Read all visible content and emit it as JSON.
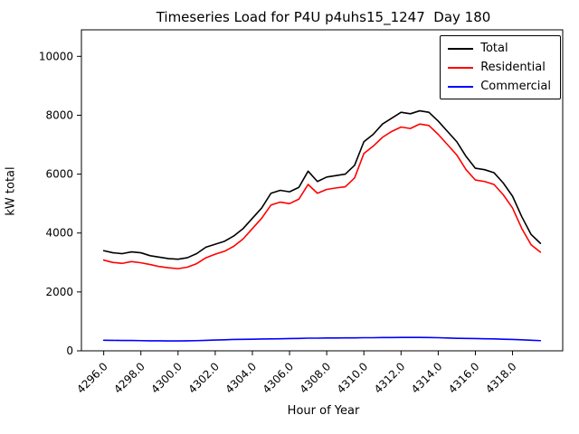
{
  "figure": {
    "title": "Timeseries Load for P4U p4uhs15_1247  Day 180",
    "xlabel": "Hour of Year",
    "ylabel": "kW total"
  },
  "legend": {
    "entries": [
      {
        "label": "Total",
        "color": "#000000"
      },
      {
        "label": "Residential",
        "color": "#ff0000"
      },
      {
        "label": "Commercial",
        "color": "#0000ff"
      }
    ]
  },
  "chart_data": {
    "type": "line",
    "title": "Timeseries Load for P4U p4uhs15_1247  Day 180",
    "xlabel": "Hour of Year",
    "ylabel": "kW total",
    "xlim": [
      4294.8,
      4320.7
    ],
    "ylim": [
      0,
      10900
    ],
    "grid": false,
    "legend_position": "upper right",
    "x_ticks": [
      4296,
      4298,
      4300,
      4302,
      4304,
      4306,
      4308,
      4310,
      4312,
      4314,
      4316,
      4318
    ],
    "x_tick_labels": [
      "4296.0",
      "4298.0",
      "4300.0",
      "4302.0",
      "4304.0",
      "4306.0",
      "4308.0",
      "4310.0",
      "4312.0",
      "4314.0",
      "4316.0",
      "4318.0"
    ],
    "y_ticks": [
      0,
      2000,
      4000,
      6000,
      8000,
      10000
    ],
    "y_tick_labels": [
      "0",
      "2000",
      "4000",
      "6000",
      "8000",
      "10000"
    ],
    "x": [
      4296.0,
      4296.5,
      4297.0,
      4297.5,
      4298.0,
      4298.5,
      4299.0,
      4299.5,
      4300.0,
      4300.5,
      4301.0,
      4301.5,
      4302.0,
      4302.5,
      4303.0,
      4303.5,
      4304.0,
      4304.5,
      4305.0,
      4305.5,
      4306.0,
      4306.5,
      4307.0,
      4307.5,
      4308.0,
      4308.5,
      4309.0,
      4309.5,
      4310.0,
      4310.5,
      4311.0,
      4311.5,
      4312.0,
      4312.5,
      4313.0,
      4313.5,
      4314.0,
      4314.5,
      4315.0,
      4315.5,
      4316.0,
      4316.5,
      4317.0,
      4317.5,
      4318.0,
      4318.5,
      4319.0,
      4319.5
    ],
    "series": [
      {
        "name": "Total",
        "color": "#000000",
        "values": [
          3400,
          3330,
          3300,
          3360,
          3330,
          3230,
          3180,
          3130,
          3110,
          3160,
          3300,
          3520,
          3620,
          3720,
          3900,
          4150,
          4500,
          4850,
          5350,
          5450,
          5400,
          5550,
          6100,
          5750,
          5900,
          5950,
          6000,
          6300,
          7100,
          7350,
          7700,
          7900,
          8100,
          8050,
          8150,
          8100,
          7800,
          7450,
          7100,
          6600,
          6200,
          6150,
          6050,
          5700,
          5250,
          4550,
          3950,
          3650
        ]
      },
      {
        "name": "Residential",
        "color": "#ff0000",
        "values": [
          3080,
          3000,
          2970,
          3030,
          2990,
          2930,
          2860,
          2820,
          2790,
          2840,
          2960,
          3160,
          3280,
          3380,
          3550,
          3800,
          4150,
          4500,
          4950,
          5050,
          5000,
          5150,
          5650,
          5350,
          5480,
          5530,
          5570,
          5870,
          6700,
          6950,
          7250,
          7450,
          7600,
          7550,
          7700,
          7650,
          7350,
          7000,
          6650,
          6150,
          5800,
          5750,
          5650,
          5300,
          4850,
          4150,
          3600,
          3350
        ]
      },
      {
        "name": "Commercial",
        "color": "#0000ff",
        "values": [
          360,
          355,
          350,
          350,
          345,
          340,
          340,
          335,
          335,
          340,
          345,
          355,
          365,
          375,
          385,
          390,
          395,
          400,
          405,
          410,
          415,
          420,
          430,
          430,
          435,
          435,
          440,
          440,
          445,
          445,
          450,
          450,
          455,
          455,
          455,
          450,
          445,
          435,
          425,
          420,
          415,
          410,
          405,
          395,
          385,
          375,
          360,
          345
        ]
      }
    ]
  }
}
